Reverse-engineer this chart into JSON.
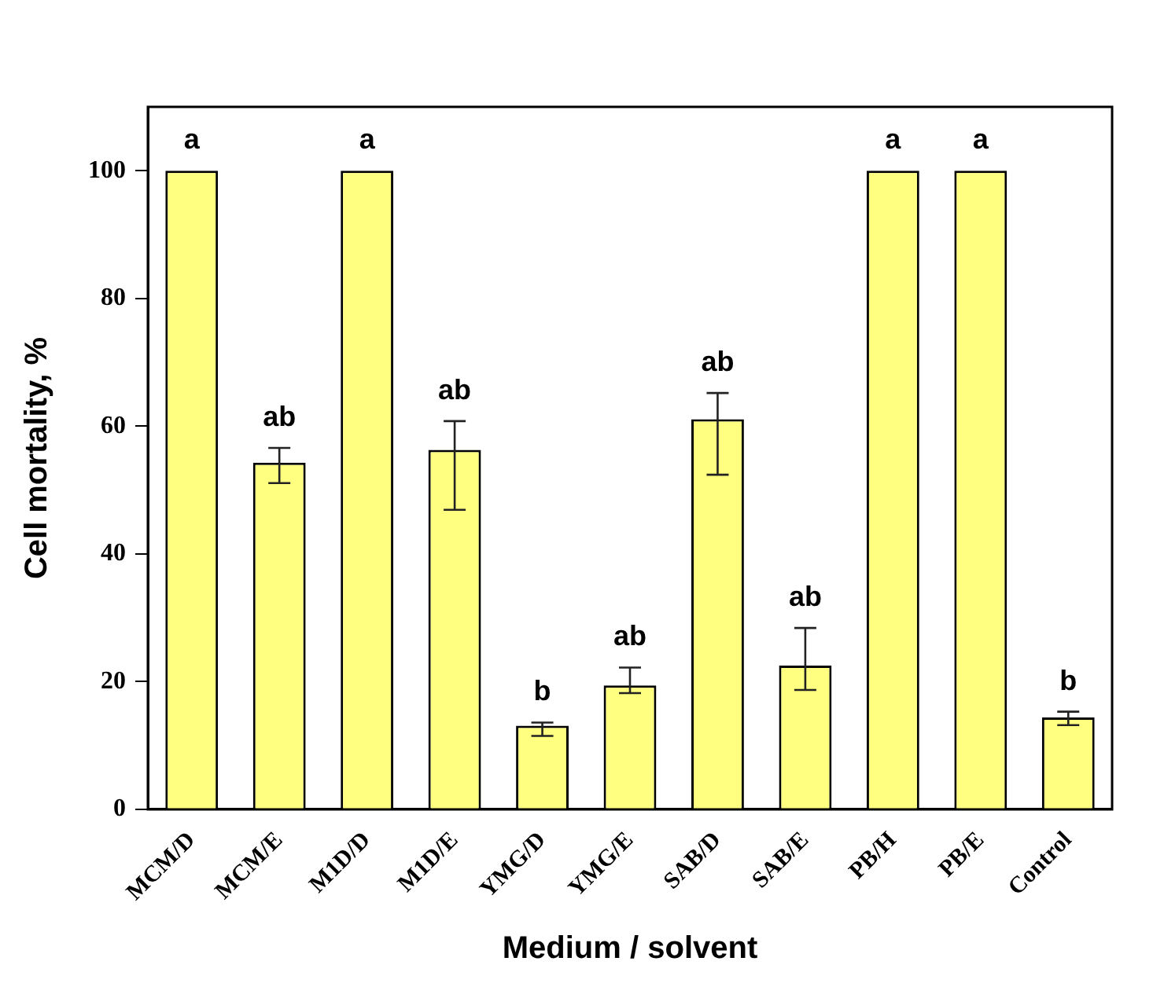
{
  "chart_data": {
    "type": "bar",
    "xlabel": "Medium / solvent",
    "ylabel": "Cell mortality, %",
    "categories": [
      "MCM/D",
      "MCM/E",
      "M1D/D",
      "M1D/E",
      "YMG/D",
      "YMG/E",
      "SAB/D",
      "SAB/E",
      "PB/H",
      "PB/E",
      "Control"
    ],
    "values": [
      100,
      54.3,
      100,
      56.3,
      13.1,
      19.4,
      61.1,
      22.5,
      100,
      100,
      14.4
    ],
    "errors": [
      null,
      [
        51.1,
        56.6
      ],
      null,
      [
        46.9,
        60.8
      ],
      [
        11.5,
        13.6
      ],
      [
        18.2,
        22.2
      ],
      [
        52.4,
        65.2
      ],
      [
        18.7,
        28.4
      ],
      null,
      null,
      [
        13.2,
        15.3
      ]
    ],
    "color": "#ffff80",
    "ylim": [
      0,
      110
    ],
    "yticks": [
      0,
      20,
      40,
      60,
      80,
      100
    ],
    "grid": false,
    "legend": false,
    "annotations": [
      {
        "text": "a",
        "x": "MCM/D",
        "y": 100
      },
      {
        "text": "ab",
        "x": "MCM/E",
        "y": 56.6
      },
      {
        "text": "a",
        "x": "M1D/D",
        "y": 100
      },
      {
        "text": "ab",
        "x": "M1D/E",
        "y": 60.8
      },
      {
        "text": "b",
        "x": "YMG/D",
        "y": 13.6
      },
      {
        "text": "ab",
        "x": "YMG/E",
        "y": 22.2
      },
      {
        "text": "ab",
        "x": "SAB/D",
        "y": 65.2
      },
      {
        "text": "ab",
        "x": "SAB/E",
        "y": 28.4
      },
      {
        "text": "a",
        "x": "PB/H",
        "y": 100
      },
      {
        "text": "a",
        "x": "PB/E",
        "y": 100
      },
      {
        "text": "b",
        "x": "Control",
        "y": 15.3
      }
    ]
  }
}
